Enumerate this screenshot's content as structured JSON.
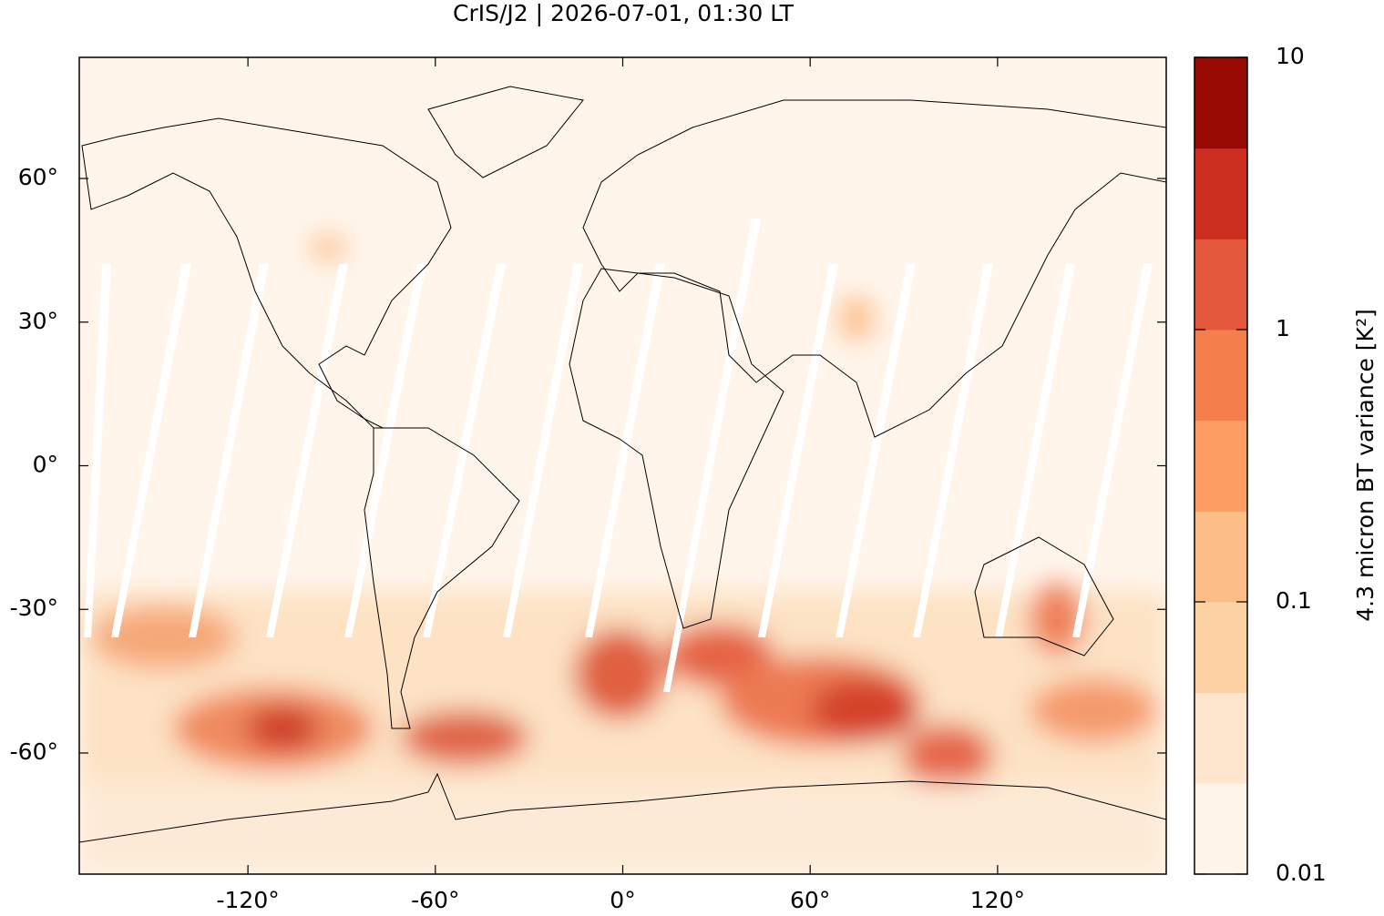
{
  "chart_data": {
    "type": "map",
    "title": "CrIS/J2 | 2026-07-01, 01:30 LT",
    "xlim": [
      -174,
      174
    ],
    "ylim": [
      -85.3,
      85.3
    ],
    "xticks": [
      {
        "value": -120,
        "label": "-120°"
      },
      {
        "value": -60,
        "label": "-60°"
      },
      {
        "value": 0,
        "label": "0°"
      },
      {
        "value": 60,
        "label": "60°"
      },
      {
        "value": 120,
        "label": "120°"
      }
    ],
    "yticks": [
      {
        "value": 60,
        "label": "60°"
      },
      {
        "value": 30,
        "label": "30°"
      },
      {
        "value": 0,
        "label": "0°"
      },
      {
        "value": -30,
        "label": "-30°"
      },
      {
        "value": -60,
        "label": "-60°"
      }
    ],
    "colorbar": {
      "label": "4.3 micron BT variance [K²]",
      "log_scale": true,
      "clim": [
        0.01,
        10
      ],
      "ticks": [
        0.01,
        0.1,
        1,
        10
      ],
      "colors": [
        "#fff5eb",
        "#fee6ce",
        "#fdd3a5",
        "#fdbd86",
        "#fc9e63",
        "#f47f4c",
        "#e3573b",
        "#cc2f20",
        "#990a05"
      ]
    }
  }
}
